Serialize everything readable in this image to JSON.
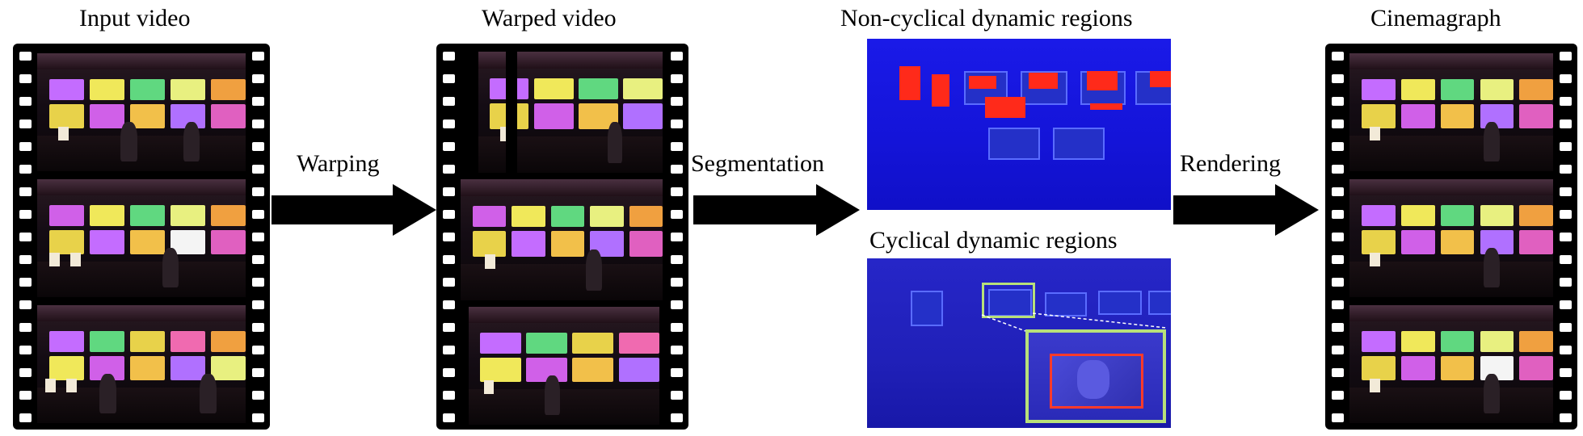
{
  "labels": {
    "input_video": "Input video",
    "warped_video": "Warped video",
    "non_cyclical": "Non-cyclical dynamic regions",
    "cyclical": "Cyclical dynamic regions",
    "cinemagraph": "Cinemagraph"
  },
  "arrows": {
    "warping": "Warping",
    "segmentation": "Segmentation",
    "rendering": "Rendering"
  },
  "colors": {
    "film": "#000000",
    "arrow": "#000000",
    "segmentation_background": "#1515e6",
    "dynamic_region": "#ff2a1a",
    "highlight_box": "#b8e07a"
  }
}
